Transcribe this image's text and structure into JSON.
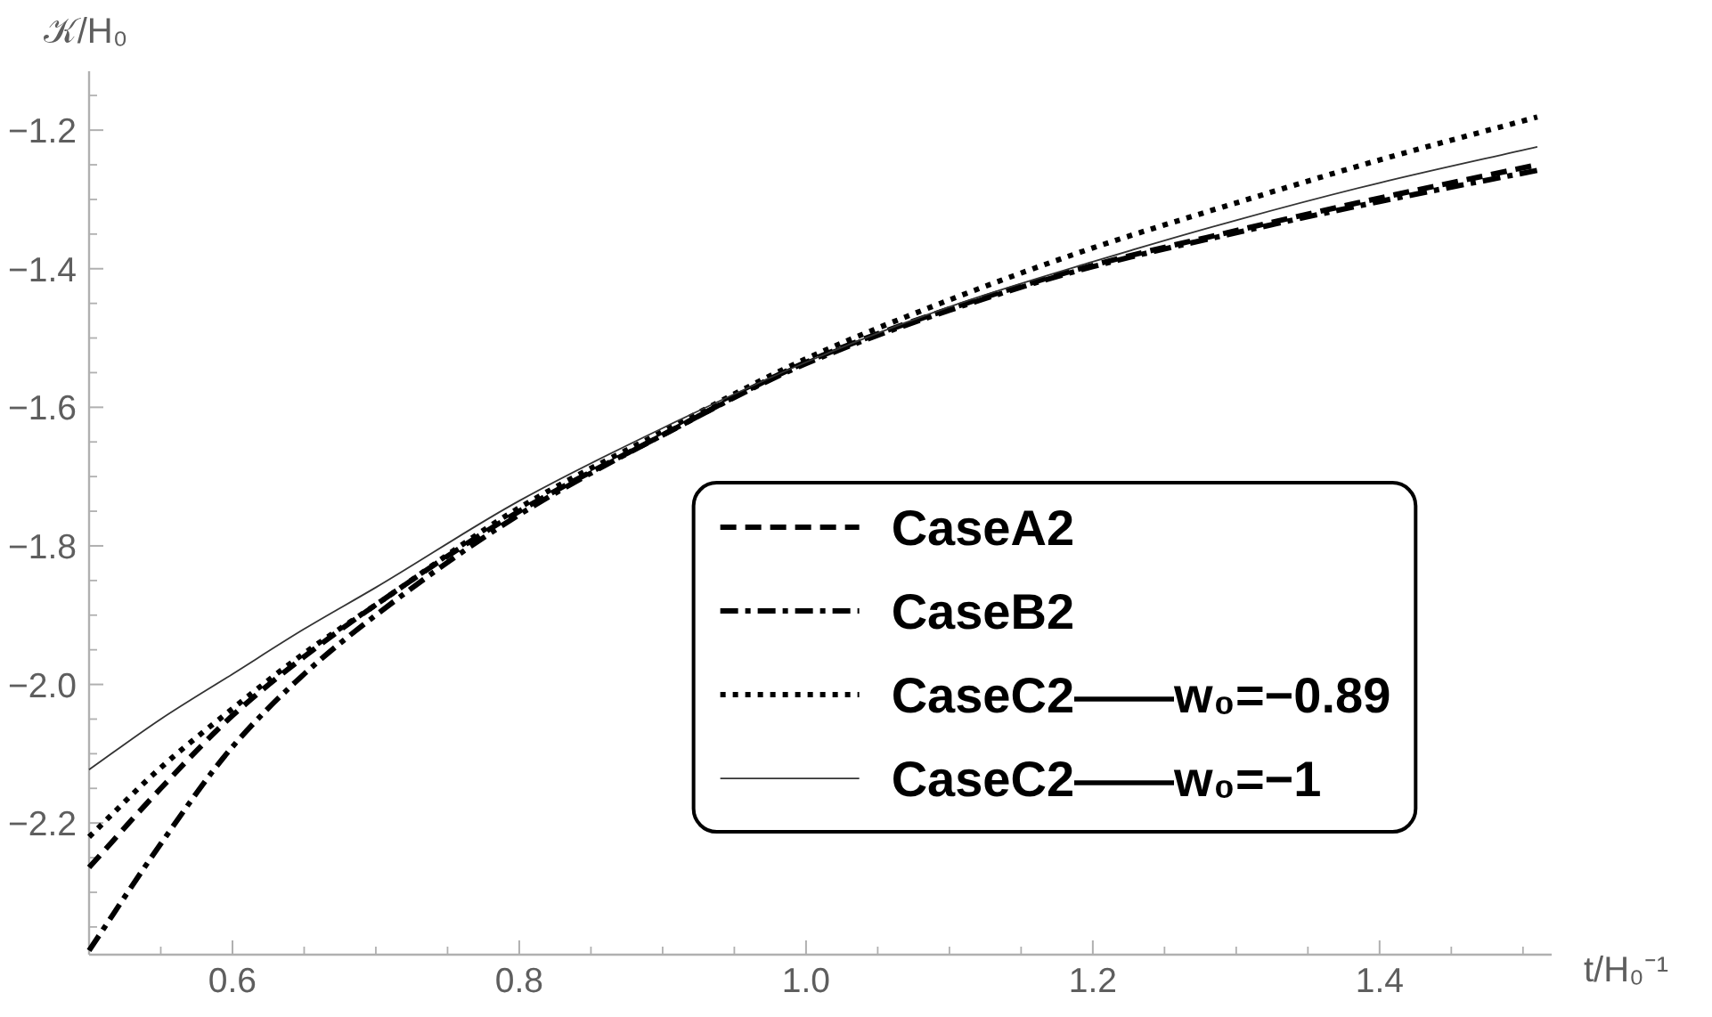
{
  "chart_data": {
    "type": "line",
    "xlabel": "t/H₀⁻¹",
    "ylabel": "𝒦/H₀",
    "x": [
      0.5,
      0.55,
      0.6,
      0.65,
      0.7,
      0.8,
      0.9,
      1.0,
      1.1,
      1.2,
      1.3,
      1.4,
      1.51
    ],
    "series": [
      {
        "name": "CaseA2",
        "color": "#000000",
        "line_style": "dashed",
        "values": [
          -2.264,
          -2.15,
          -2.045,
          -1.96,
          -1.885,
          -1.75,
          -1.64,
          -1.535,
          -1.458,
          -1.395,
          -1.345,
          -1.298,
          -1.25
        ]
      },
      {
        "name": "CaseB2",
        "color": "#000000",
        "line_style": "dashdot",
        "values": [
          -2.384,
          -2.23,
          -2.09,
          -1.985,
          -1.9,
          -1.755,
          -1.64,
          -1.537,
          -1.46,
          -1.397,
          -1.348,
          -1.303,
          -1.258
        ]
      },
      {
        "name": "CaseC2——w₀=−0.89",
        "color": "#000000",
        "line_style": "dotted",
        "values": [
          -2.22,
          -2.12,
          -2.035,
          -1.955,
          -1.885,
          -1.745,
          -1.635,
          -1.53,
          -1.445,
          -1.37,
          -1.305,
          -1.243,
          -1.181
        ]
      },
      {
        "name": "CaseC2——w₀=−1",
        "color": "#333333",
        "line_style": "solid",
        "values": [
          -2.123,
          -2.05,
          -1.985,
          -1.92,
          -1.86,
          -1.735,
          -1.63,
          -1.535,
          -1.455,
          -1.39,
          -1.33,
          -1.276,
          -1.224
        ]
      }
    ],
    "xlim": [
      0.5,
      1.52
    ],
    "ylim": [
      -2.39,
      -1.115
    ],
    "xticks": [
      0.6,
      0.8,
      {
        "value": 1.0,
        "label": "1.0"
      },
      1.2,
      1.4
    ],
    "yticks": [
      {
        "value": -2.2,
        "label": "−2.2"
      },
      {
        "value": -2.0,
        "label": "−2.0"
      },
      {
        "value": -1.8,
        "label": "−1.8"
      },
      {
        "value": -1.6,
        "label": "−1.6"
      },
      {
        "value": -1.4,
        "label": "−1.4"
      },
      {
        "value": -1.2,
        "label": "−1.2"
      }
    ],
    "legend": "bottom right"
  }
}
